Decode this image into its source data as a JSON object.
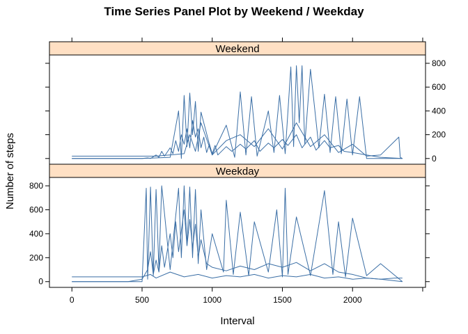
{
  "chart_data": {
    "type": "line",
    "title": "Time Series Panel Plot by Weekend / Weekday",
    "xlabel": "Interval",
    "ylabel": "Number of steps",
    "xlim": [
      -160,
      2520
    ],
    "ylim": [
      -48,
      870
    ],
    "x_ticks": [
      0,
      500,
      1000,
      1500,
      2000
    ],
    "y_ticks": [
      0,
      200,
      400,
      600,
      800
    ],
    "grid": false,
    "line_color": "#3a6ea5",
    "strip_color": "#ffe0c4",
    "panels": [
      {
        "label": "Weekend",
        "y_axis_side": "right",
        "series": [
          {
            "x": [
              0,
              400,
              500,
              540,
              560,
              600,
              620,
              640,
              660,
              700,
              720,
              740,
              760,
              780,
              800,
              820,
              840,
              860,
              880,
              900,
              920,
              940,
              960,
              980,
              1000,
              1020,
              1040,
              1100,
              1140,
              1200,
              1240,
              1300,
              1340,
              1400,
              1440,
              1500,
              1540,
              1600,
              1640,
              1700,
              1740,
              1800,
              1840,
              1900,
              1940,
              2000,
              2100,
              2200,
              2355
            ],
            "y": [
              0,
              0,
              0,
              5,
              0,
              30,
              10,
              60,
              20,
              90,
              40,
              150,
              60,
              200,
              120,
              250,
              90,
              320,
              180,
              250,
              90,
              180,
              50,
              120,
              40,
              110,
              30,
              100,
              60,
              120,
              80,
              150,
              60,
              130,
              90,
              160,
              110,
              200,
              90,
              180,
              70,
              150,
              90,
              110,
              60,
              50,
              30,
              10,
              0
            ]
          },
          {
            "x": [
              0,
              500,
              700,
              760,
              780,
              800,
              820,
              840,
              860,
              880,
              900,
              920,
              1000,
              1100,
              1160,
              1200,
              1240,
              1280,
              1320,
              1400,
              1440,
              1480,
              1520,
              1560,
              1580,
              1600,
              1620,
              1640,
              1660,
              1700,
              1760,
              1800,
              1840,
              1880,
              1920,
              1960,
              2000,
              2050,
              2100,
              2355
            ],
            "y": [
              0,
              0,
              10,
              400,
              0,
              530,
              100,
              550,
              200,
              480,
              60,
              390,
              30,
              280,
              10,
              560,
              30,
              520,
              20,
              400,
              50,
              530,
              40,
              770,
              100,
              780,
              300,
              780,
              120,
              750,
              90,
              540,
              50,
              520,
              40,
              500,
              30,
              520,
              0,
              0
            ]
          },
          {
            "x": [
              0,
              600,
              800,
              840,
              880,
              920,
              1000,
              1100,
              1200,
              1300,
              1400,
              1500,
              1600,
              1700,
              1800,
              1900,
              2000,
              2100,
              2200,
              2330,
              2340,
              2355
            ],
            "y": [
              20,
              20,
              40,
              200,
              60,
              300,
              30,
              150,
              200,
              100,
              250,
              80,
              300,
              100,
              200,
              50,
              120,
              20,
              30,
              180,
              10,
              0
            ]
          }
        ]
      },
      {
        "label": "Weekday",
        "y_axis_side": "left",
        "series": [
          {
            "x": [
              0,
              200,
              400,
              500,
              540,
              560,
              580,
              600,
              620,
              640,
              660,
              700,
              720,
              740,
              760,
              800,
              820,
              840,
              860,
              880,
              900,
              920,
              960,
              1000,
              1100,
              1200,
              1300,
              1400,
              1500,
              1600,
              1700,
              1800,
              1900,
              2000,
              2100,
              2200,
              2355
            ],
            "y": [
              0,
              0,
              0,
              20,
              100,
              250,
              60,
              180,
              80,
              300,
              120,
              400,
              200,
              500,
              250,
              600,
              300,
              520,
              280,
              480,
              200,
              350,
              150,
              120,
              90,
              130,
              100,
              150,
              120,
              160,
              90,
              150,
              80,
              60,
              30,
              20,
              0
            ]
          },
          {
            "x": [
              0,
              500,
              530,
              540,
              560,
              580,
              600,
              620,
              640,
              700,
              760,
              780,
              800,
              820,
              840,
              860,
              880,
              900,
              920,
              960,
              1000,
              1080,
              1100,
              1150,
              1200,
              1260,
              1300,
              1400,
              1460,
              1500,
              1520,
              1540,
              1600,
              1700,
              1800,
              1860,
              1900,
              1950,
              2000,
              2100,
              2200,
              2355
            ],
            "y": [
              0,
              0,
              780,
              20,
              790,
              50,
              770,
              100,
              800,
              100,
              780,
              200,
              800,
              300,
              790,
              200,
              770,
              150,
              600,
              100,
              400,
              80,
              680,
              60,
              580,
              50,
              500,
              80,
              600,
              40,
              780,
              60,
              540,
              50,
              760,
              60,
              500,
              40,
              530,
              50,
              150,
              0
            ]
          },
          {
            "x": [
              0,
              300,
              500,
              560,
              600,
              700,
              800,
              900,
              1000,
              1100,
              1200,
              1300,
              1400,
              1500,
              1600,
              1700,
              1800,
              1900,
              2000,
              2100,
              2200,
              2300,
              2355
            ],
            "y": [
              40,
              40,
              40,
              60,
              30,
              80,
              40,
              60,
              30,
              50,
              40,
              60,
              30,
              50,
              40,
              60,
              30,
              40,
              20,
              30,
              20,
              30,
              30
            ]
          }
        ]
      }
    ]
  }
}
